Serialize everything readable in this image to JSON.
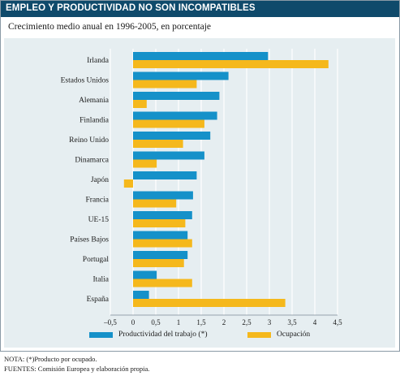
{
  "header": {
    "title": "EMPLEO Y PRODUCTIVIDAD NO SON INCOMPATIBLES"
  },
  "subtitle": "Crecimiento medio anual en 1996-2005, en porcentaje",
  "colors": {
    "series1": "#1591c9",
    "series2": "#f5b81c",
    "header_bg": "#0f4a6b",
    "panel_bg": "#e6eef1"
  },
  "chart_data": {
    "type": "bar",
    "orientation": "horizontal",
    "categories": [
      "Irlanda",
      "Estados Unidos",
      "Alemania",
      "Finlandia",
      "Reino Unido",
      "Dinamarca",
      "Japón",
      "Francia",
      "UE-15",
      "Países Bajos",
      "Portugal",
      "Italia",
      "España"
    ],
    "series": [
      {
        "name": "Productividad del trabajo (*)",
        "values": [
          2.97,
          2.1,
          1.9,
          1.85,
          1.7,
          1.57,
          1.4,
          1.32,
          1.3,
          1.2,
          1.2,
          0.52,
          0.35
        ]
      },
      {
        "name": "Ocupación",
        "values": [
          4.3,
          1.4,
          0.3,
          1.57,
          1.1,
          0.52,
          -0.2,
          0.95,
          1.15,
          1.3,
          1.12,
          1.3,
          3.35
        ]
      }
    ],
    "xlim": [
      -0.5,
      4.5
    ],
    "xticks": [
      "–0,5",
      "0",
      "0,5",
      "1",
      "1,5",
      "2",
      "2,5",
      "3",
      "3,5",
      "4",
      "4,5"
    ],
    "grid": true,
    "legend_position": "bottom"
  },
  "legend": {
    "series1": "Productividad del trabajo (*)",
    "series2": "Ocupación"
  },
  "notes": {
    "nota": "NOTA: (*)Producto por ocupado.",
    "fuentes": "FUENTES: Comisión Europea y elaboración propia."
  }
}
